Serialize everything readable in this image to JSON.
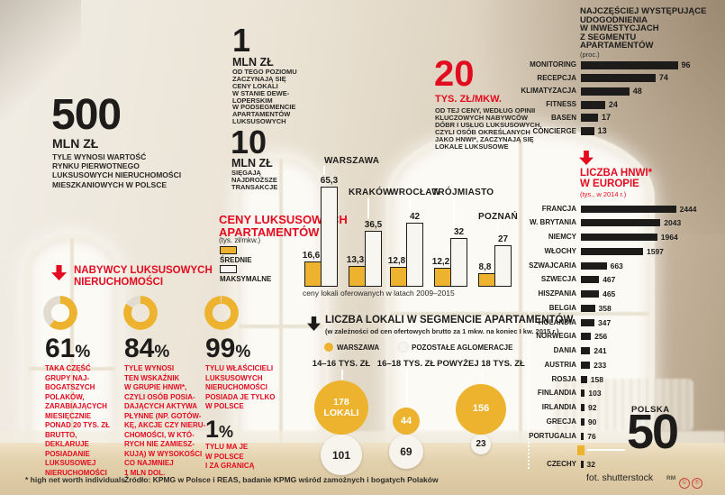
{
  "palette": {
    "red": "#e30b20",
    "yellow": "#edb32f",
    "ink": "#1d1c1a",
    "circle_white": "#f7f4ee"
  },
  "big_stats": {
    "market_value": {
      "value": "500",
      "unit": "MLN ZŁ",
      "desc": "TYLE WYNOSI WARTOŚĆ\nRYNKU PIERWOTNEGO\nLUKSUSOWYCH NIERUCHOMOŚCI\nMIESZKANIOWYCH W POLSCE"
    },
    "entry_price": {
      "value": "1",
      "unit": "MLN ZŁ",
      "desc": "OD TEGO POZIOMU\nZACZYNAJĄ SIĘ\nCENY LOKALI\nW STANIE DEWE-\nLOPERSKIM\nW PODSEGMENCIE\nAPARTAMENTÓW\nLUKSUSOWYCH"
    },
    "top_price": {
      "value": "10",
      "unit": "MLN ZŁ",
      "desc": "SIĘGAJĄ\nNAJDROŻSZE\nTRANSAKCJE"
    },
    "luxury_threshold": {
      "value": "20",
      "unit": "TYS. ZŁ/MKW.",
      "desc": "OD TEJ CENY, WEDŁUG OPINII\nKLUCZOWYCH NABYWCÓW\nDÓBR I USŁUG LUKSUSOWYCH,\nCZYLI OSÓB OKREŚLANYCH\nJAKO HNWI*, ZACZYNAJĄ SIĘ\nLOKALE LUKSUSOWE"
    }
  },
  "buyers": {
    "title": "NABYWCY LUKSUSOWYCH\nNIERUCHOMOŚCI",
    "pct_sign": "%",
    "donuts": [
      {
        "pct": 61,
        "pct_label": "61",
        "text": "TAKA CZĘŚĆ\nGRUPY NAJ-\nBOGATSZYCH\nPOLAKÓW,\nZARABIAJĄCYCH\nMIESIĘCZNIE\nPONAD 20 TYS. ZŁ\nBRUTTO,\nDEKLARUJE\nPOSIADANIE\nLUKSUSOWEJ\nNIERUCHOMOŚCI"
      },
      {
        "pct": 84,
        "pct_label": "84",
        "text": "TYLE WYNOSI\nTEN WSKAŹNIK\nW GRUPIE HNWI*,\nCZYLI OSÓB POSIA-\nDAJĄCYCH AKTYWA\nPŁYNNE (NP. GOTÓW-\nKĘ, AKCJE CZY NIERU-\nCHOMOŚCI, W KTÓ-\nRYCH NIE ZAMIESZ-\nKUJĄ) W WYSOKOŚCI\nCO NAJMNIEJ\n1 MLN DOL."
      },
      {
        "pct": 99,
        "pct_label": "99",
        "text": "TYLU WŁAŚCICIELI\nLUKSUSOWYCH\nNIERUCHOMOŚCI\nPOSIADA JE TYLKO\nW POLSCE"
      }
    ],
    "abroad": {
      "pct_label": "1",
      "text": "TYLU MA JE\nW POLSCE\nI ZA GRANICĄ"
    }
  },
  "chart_data": [
    {
      "id": "amenities",
      "type": "bar",
      "orientation": "horizontal",
      "title": "NAJCZĘŚCIEJ WYSTĘPUJĄCE\nUDOGODNIENIA\nW INWESTYCJACH\nZ SEGMENTU\nAPARTAMENTÓW",
      "unit_label": "(proc.)",
      "categories": [
        "MONITORING",
        "RECEPCJA",
        "KLIMATYZACJA",
        "FITNESS",
        "BASEN",
        "CONCIERGE"
      ],
      "values": [
        96,
        74,
        48,
        24,
        17,
        13
      ]
    },
    {
      "id": "hnwi_europe",
      "type": "bar",
      "orientation": "horizontal",
      "title": "LICZBA HNWI*\nW EUROPIE",
      "unit_label": "(tys., w 2014 r.)",
      "categories": [
        "FRANCJA",
        "W. BRYTANIA",
        "NIEMCY",
        "WŁOCHY",
        "SZWAJCARIA",
        "SZWECJA",
        "HISZPANIA",
        "BELGIA",
        "HOLANDIA",
        "NORWEGIA",
        "DANIA",
        "AUSTRIA",
        "ROSJA",
        "FINLANDIA",
        "IRLANDIA",
        "GRECJA",
        "PORTUGALIA",
        "POLSKA",
        "CZECHY"
      ],
      "values": [
        2444,
        2043,
        1964,
        1597,
        663,
        467,
        465,
        358,
        347,
        256,
        241,
        233,
        158,
        103,
        92,
        90,
        76,
        50,
        32
      ],
      "highlight": {
        "category": "POLSKA",
        "value": 50,
        "big_label": "50"
      }
    },
    {
      "id": "luxury_prices",
      "type": "bar",
      "grouped": true,
      "title": "CENY LUKSUSOWYCH\nAPARTAMENTÓW",
      "unit_label": "(tys. zł/mkw.)",
      "legend": [
        "ŚREDNIE",
        "MAKSYMALNE"
      ],
      "categories": [
        "WARSZAWA",
        "KRAKÓW",
        "WROCŁAW",
        "TRÓJMIASTO",
        "POZNAŃ"
      ],
      "series": [
        {
          "name": "ŚREDNIE",
          "values": [
            16.6,
            13.3,
            12.8,
            12.2,
            8.8
          ],
          "labels": [
            "16,6",
            "13,3",
            "12,8",
            "12,2",
            "8,8"
          ]
        },
        {
          "name": "MAKSYMALNE",
          "values": [
            65.3,
            36.5,
            42,
            32,
            27
          ],
          "labels": [
            "65,3",
            "36,5",
            "42",
            "32",
            "27"
          ]
        }
      ],
      "caption": "ceny lokali oferowanych w latach 2009–2015"
    },
    {
      "id": "units_segment",
      "type": "bubble",
      "title": "LICZBA LOKALI W SEGMENCIE APARTAMENTÓW",
      "subtitle": "(w zależności od cen ofertowych brutto za 1 mkw. na koniec I kw. 2015 r.)",
      "legend": [
        "WARSZAWA",
        "POZOSTAŁE AGLOMERACJE"
      ],
      "groups": [
        {
          "label": "14–16 TYS. ZŁ",
          "warszawa": 178,
          "warszawa_label": "178\nLOKALI",
          "other": 101
        },
        {
          "label": "16–18 TYS. ZŁ",
          "warszawa": 44,
          "warszawa_label": "44",
          "other": 69
        },
        {
          "label": "POWYŻEJ 18 TYS. ZŁ",
          "warszawa": 156,
          "warszawa_label": "156",
          "other": 23
        }
      ]
    },
    {
      "id": "buyers_share",
      "type": "pie",
      "title": "NABYWCY LUKSUSOWYCH NIERUCHOMOŚCI",
      "values": [
        61,
        84,
        99,
        1
      ]
    }
  ],
  "footer": {
    "footnote": "* high net worth individuals",
    "source": "Źródło: KPMG w Polsce i REAS, badanie KPMG wśród zamożnych i bogatych Polaków",
    "photo_credit": "fot. shutterstock",
    "agency": "RM",
    "license_icons": [
      "©",
      "℗"
    ]
  }
}
